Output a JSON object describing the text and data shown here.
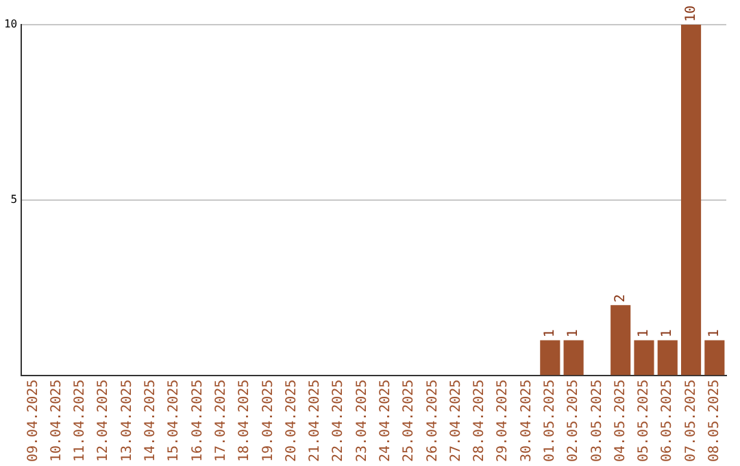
{
  "chart_data": {
    "type": "bar",
    "categories": [
      "09.04.2025",
      "10.04.2025",
      "11.04.2025",
      "12.04.2025",
      "13.04.2025",
      "14.04.2025",
      "15.04.2025",
      "16.04.2025",
      "17.04.2025",
      "18.04.2025",
      "19.04.2025",
      "20.04.2025",
      "21.04.2025",
      "22.04.2025",
      "23.04.2025",
      "24.04.2025",
      "25.04.2025",
      "26.04.2025",
      "27.04.2025",
      "28.04.2025",
      "29.04.2025",
      "30.04.2025",
      "01.05.2025",
      "02.05.2025",
      "03.05.2025",
      "04.05.2025",
      "05.05.2025",
      "06.05.2025",
      "07.05.2025",
      "08.05.2025"
    ],
    "values": [
      0,
      0,
      0,
      0,
      0,
      0,
      0,
      0,
      0,
      0,
      0,
      0,
      0,
      0,
      0,
      0,
      0,
      0,
      0,
      0,
      0,
      0,
      1,
      1,
      0,
      2,
      1,
      1,
      10,
      1
    ],
    "value_labels": [
      null,
      null,
      null,
      null,
      null,
      null,
      null,
      null,
      null,
      null,
      null,
      null,
      null,
      null,
      null,
      null,
      null,
      null,
      null,
      null,
      null,
      null,
      "1",
      "1",
      null,
      "2",
      "1",
      "1",
      "10",
      "1"
    ],
    "color": "#a0522d",
    "ylim": [
      0,
      10
    ],
    "yticks": [
      5,
      10
    ],
    "grid": "y",
    "legend": false
  }
}
